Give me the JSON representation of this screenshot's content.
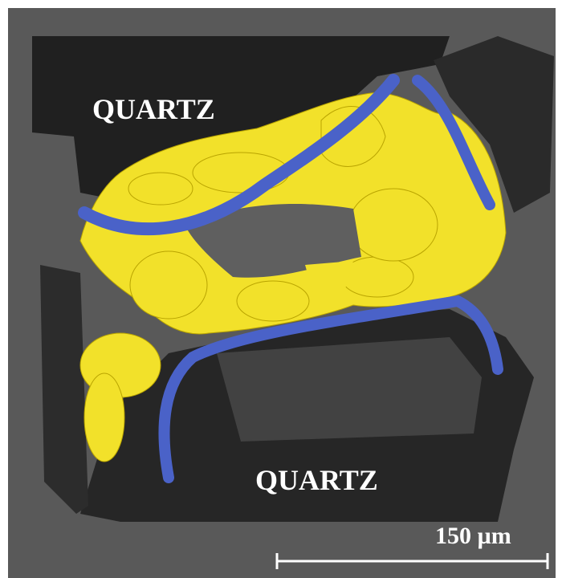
{
  "labels": {
    "top": "QUARTZ",
    "bottom": "QUARTZ"
  },
  "scale_bar": {
    "label": "150 µm"
  }
}
